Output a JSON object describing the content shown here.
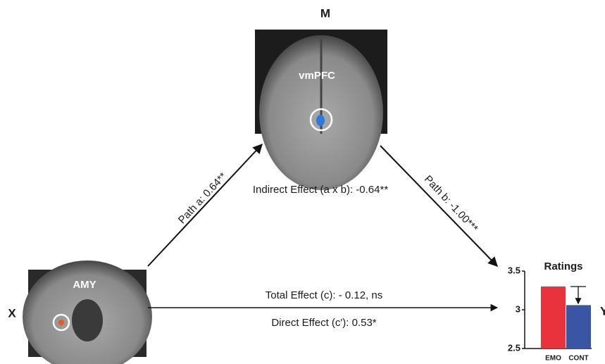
{
  "nodes": {
    "M": {
      "label": "M",
      "region": "vmPFC"
    },
    "X": {
      "label": "X",
      "region": "AMY"
    },
    "Y": {
      "label": "Y"
    }
  },
  "edges": {
    "path_a": "Path a: 0.64**",
    "path_b": "Path b: -1.00***",
    "indirect": "Indirect Effect (a x b): -0.64**",
    "total": "Total Effect (c): - 0.12, ns",
    "direct": "Direct Effect (c'): 0.53*"
  },
  "chart_data": {
    "type": "bar",
    "title": "Ratings",
    "categories": [
      "EMO",
      "CONT"
    ],
    "values": [
      3.3,
      3.06
    ],
    "colors": [
      "#e8323c",
      "#3a55a4"
    ],
    "ylim": [
      2.5,
      3.5
    ],
    "yticks": [
      2.5,
      3,
      3.5
    ]
  }
}
